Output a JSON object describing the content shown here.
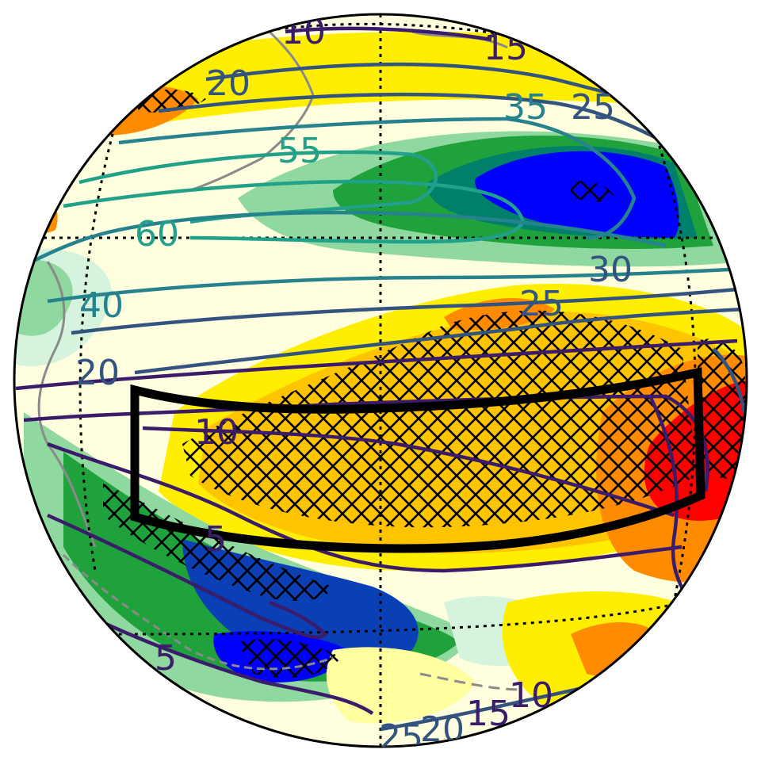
{
  "map": {
    "projection": "orthographic",
    "colors": {
      "globe_outline": "#000000",
      "coast": "#8a8a8a",
      "graticule": "#000000",
      "box": "#000000",
      "shading": {
        "strong_positive": "#ff0000",
        "positive_high": "#ff8c00",
        "positive_mid": "#ffc400",
        "positive_low": "#ffee00",
        "weak_positive": "#ffffa0",
        "neutral": "#ffffe0",
        "weak_negative": "#d6f3dd",
        "negative_low": "#8fd8a0",
        "negative_mid": "#1fa13b",
        "negative_high": "#00806a",
        "strong_negative": "#0a3fb5",
        "strongest_negative": "#0000ff"
      },
      "contours": {
        "low": "#3b1c6b",
        "mid": "#33547e",
        "high": "#26838e",
        "peak": "#21a08a"
      }
    },
    "contour_labels": [
      {
        "id": "label-10-top",
        "text": "10"
      },
      {
        "id": "label-15-top",
        "text": "15"
      },
      {
        "id": "label-20-upper-left",
        "text": "20"
      },
      {
        "id": "label-35-upper-right",
        "text": "35"
      },
      {
        "id": "label-25-upper-right",
        "text": "25"
      },
      {
        "id": "label-55",
        "text": "55"
      },
      {
        "id": "label-60",
        "text": "60"
      },
      {
        "id": "label-40",
        "text": "40"
      },
      {
        "id": "label-30-right",
        "text": "30"
      },
      {
        "id": "label-25-mid",
        "text": "25"
      },
      {
        "id": "label-20-left",
        "text": "20"
      },
      {
        "id": "label-10-mid",
        "text": "10"
      },
      {
        "id": "label-5-box",
        "text": "5"
      },
      {
        "id": "label-5-lower-left",
        "text": "5"
      },
      {
        "id": "label-10-bottom",
        "text": "10"
      },
      {
        "id": "label-15-bottom",
        "text": "15"
      },
      {
        "id": "label-20-bottom",
        "text": "20"
      },
      {
        "id": "label-25-bottom",
        "text": "25"
      }
    ]
  }
}
